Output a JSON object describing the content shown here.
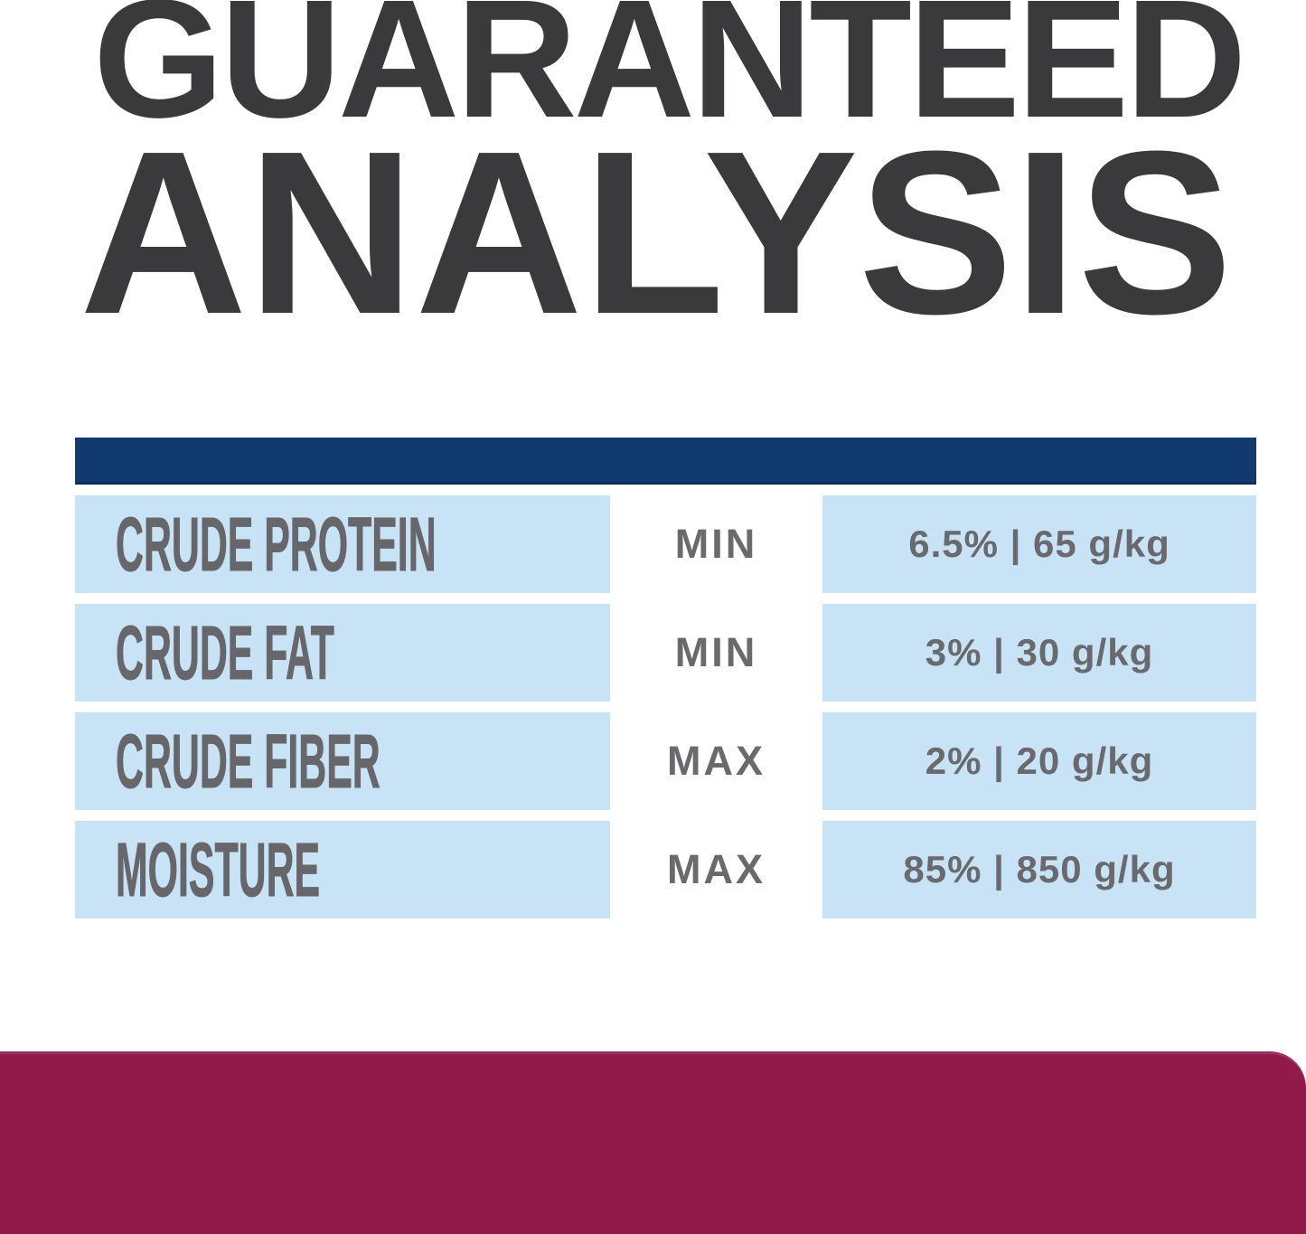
{
  "title": {
    "line1": "GUARANTEED",
    "line2": "ANALYSIS"
  },
  "table": {
    "rows": [
      {
        "label": "CRUDE PROTEIN",
        "qualifier": "MIN",
        "value": "6.5% | 65 g/kg"
      },
      {
        "label": "CRUDE FAT",
        "qualifier": "MIN",
        "value": "3% | 30 g/kg"
      },
      {
        "label": "CRUDE FIBER",
        "qualifier": "MAX",
        "value": "2% | 20 g/kg"
      },
      {
        "label": "MOISTURE",
        "qualifier": "MAX",
        "value": "85% | 850 g/kg"
      }
    ]
  },
  "colors": {
    "title_text": "#3a393c",
    "navy_bar": "#113a6e",
    "row_background": "#c7e3f5",
    "label_text": "#67666b",
    "value_text": "#6a696e",
    "footer_band": "#911a4b",
    "page_background": "#ffffff"
  }
}
